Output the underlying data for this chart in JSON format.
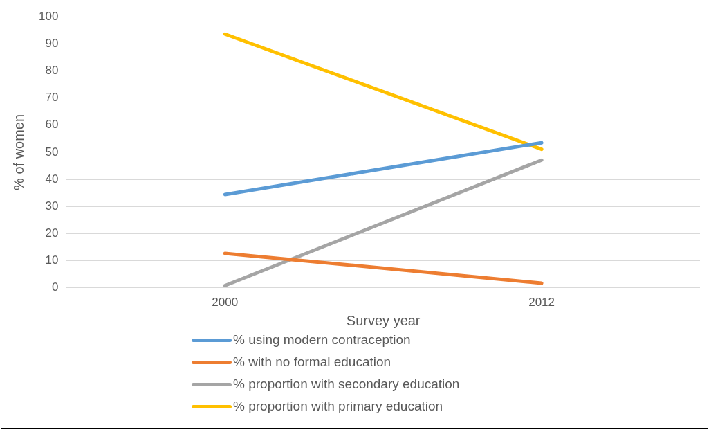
{
  "chart_data": {
    "type": "line",
    "xlabel": "Survey year",
    "ylabel": "% of women",
    "categories": [
      "2000",
      "2012"
    ],
    "series": [
      {
        "name": "% using modern contraception",
        "color": "#5b9bd5",
        "values": [
          34.4,
          53.5
        ]
      },
      {
        "name": "% with no formal education",
        "color": "#ed7d31",
        "values": [
          12.7,
          1.7
        ]
      },
      {
        "name": "% proportion with secondary education",
        "color": "#a5a5a5",
        "values": [
          0.8,
          47.1
        ]
      },
      {
        "name": "% proportion with primary education",
        "color": "#ffc000",
        "values": [
          93.6,
          51.1
        ]
      }
    ],
    "ylim": [
      0,
      100
    ],
    "yticks": [
      0,
      10,
      20,
      30,
      40,
      50,
      60,
      70,
      80,
      90,
      100
    ],
    "grid": "y",
    "legend": "bottom",
    "marker": "none",
    "line_style": "solid"
  }
}
